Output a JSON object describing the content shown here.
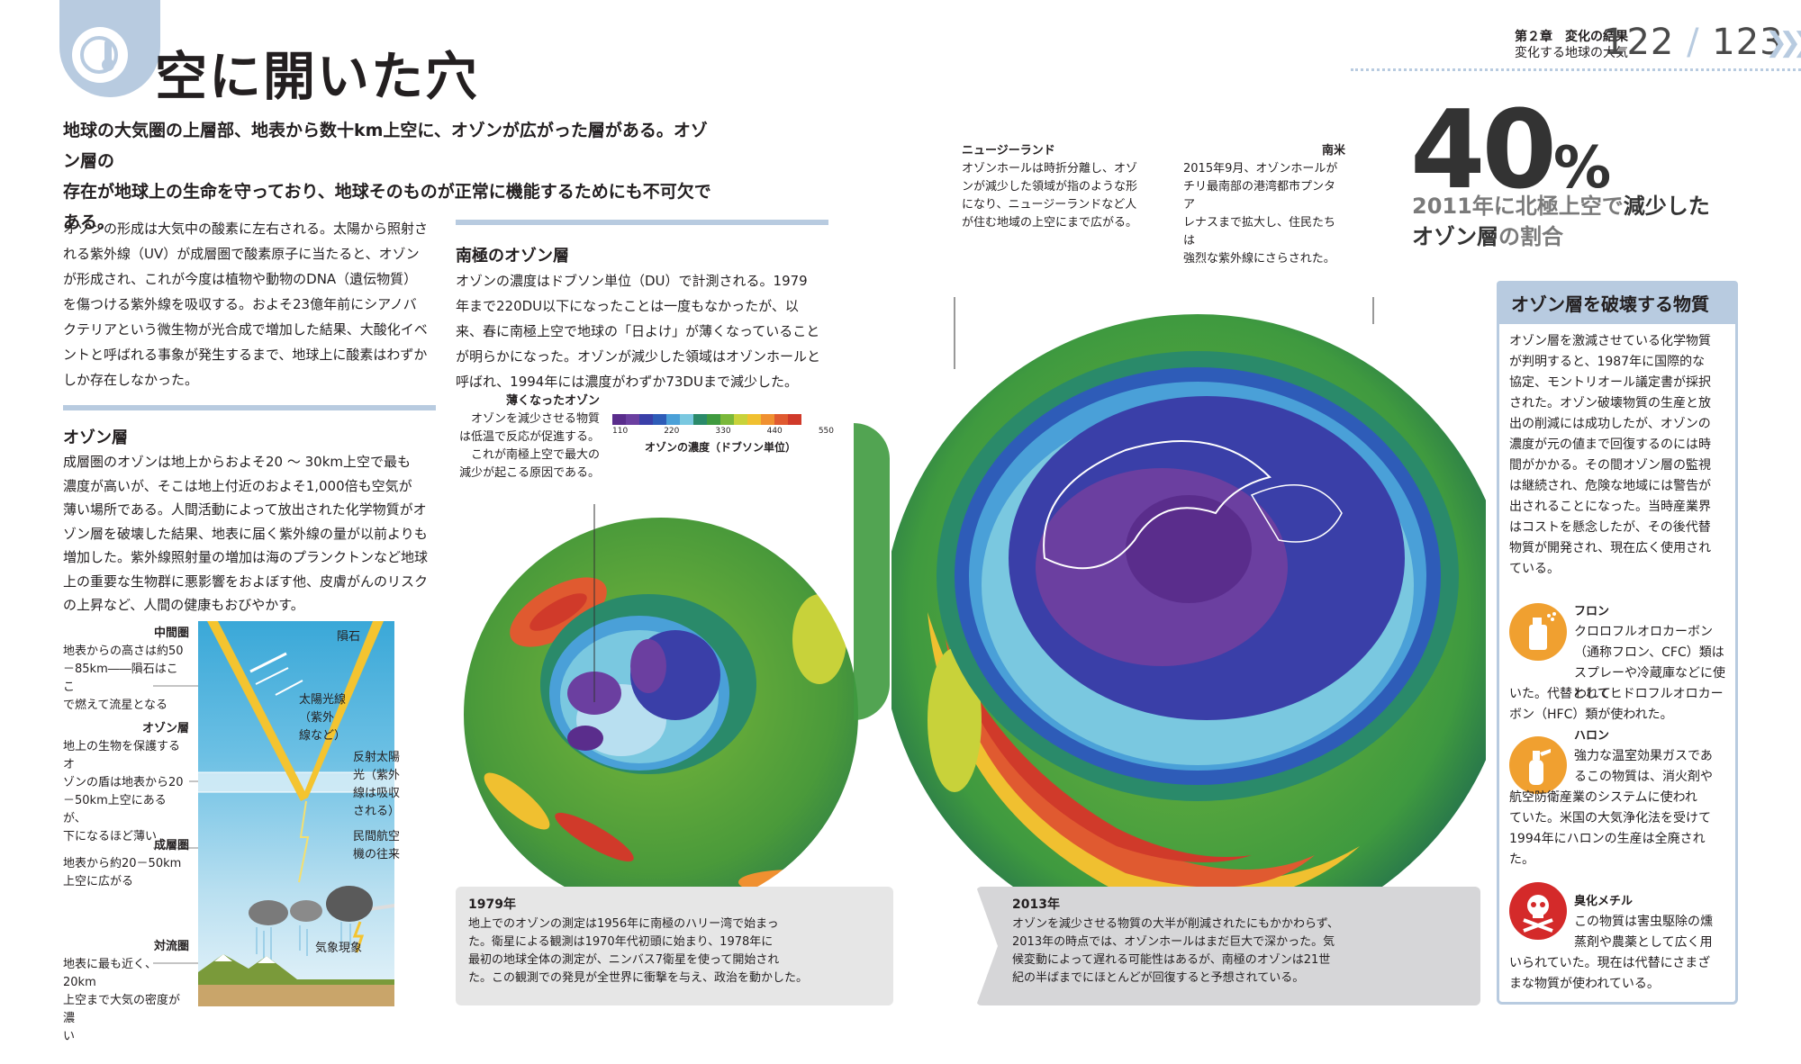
{
  "header": {
    "chapter": "第２章　変化の結果",
    "subtitle": "変化する地球の大気",
    "page_left": "122",
    "page_sep": "/",
    "page_right": "123"
  },
  "title": "空に開いた穴",
  "lead": [
    "地球の大気圏の上層部、地表から数十km上空に、オゾンが広がった層がある。オゾン層の",
    "存在が地球上の生命を守っており、地球そのものが正常に機能するためにも不可欠である。"
  ],
  "intro_paragraph": [
    "オゾンの形成は大気中の酸素に左右される。太陽から照射さ",
    "れる紫外線（UV）が成層圏で酸素原子に当たると、オゾン",
    "が形成され、これが今度は植物や動物のDNA（遺伝物質）",
    "を傷つける紫外線を吸収する。およそ23億年前にシアノバ",
    "クテリアという微生物が光合成で増加した結果、大酸化イベ",
    "ントと呼ばれる事象が発生するまで、地球上に酸素はわずか",
    "しか存在しなかった。"
  ],
  "ozone_layer": {
    "heading": "オゾン層",
    "lines": [
      "成層圏のオゾンは地上からおよそ20 ～ 30km上空で最も",
      "濃度が高いが、そこは地上付近のおよそ1,000倍も空気が",
      "薄い場所である。人間活動によって放出された化学物質がオ",
      "ゾン層を破壊した結果、地表に届く紫外線の量が以前よりも",
      "増加した。紫外線照射量の増加は海のプランクトンなど地球",
      "上の重要な生物群に悪影響をおよぼす他、皮膚がんのリスク",
      "の上昇など、人間の健康もおびやかす。"
    ]
  },
  "atmosphere_diagram": {
    "mesosphere": {
      "title": "中間圏",
      "lines": [
        "地表からの高さは約50",
        "－85km――隕石はここ",
        "で燃えて流星となる"
      ]
    },
    "ozone": {
      "title": "オゾン層",
      "lines": [
        "地上の生物を保護するオ",
        "ゾンの盾は地表から20",
        "－50km上空にあるが、",
        "下になるほど薄い"
      ]
    },
    "stratosphere": {
      "title": "成層圏",
      "lines": [
        "地表から約20－50km",
        "上空に広がる"
      ]
    },
    "troposphere": {
      "title": "対流圏",
      "lines": [
        "地表に最も近く、20km",
        "上空まで大気の密度が濃",
        "い"
      ]
    },
    "labels": {
      "meteor": "隕石",
      "sunlight": [
        "太陽光線",
        "（紫外",
        "線など）"
      ],
      "reflected": [
        "反射太陽",
        "光（紫外",
        "線は吸収",
        "される）"
      ],
      "aviation": [
        "民間航空",
        "機の往来"
      ],
      "weather": "気象現象"
    }
  },
  "antarctic": {
    "heading": "南極のオゾン層",
    "lines": [
      "オゾンの濃度はドブソン単位（DU）で計測される。1979",
      "年まで220DU以下になったことは一度もなかったが、以",
      "来、春に南極上空で地球の「日よけ」が薄くなっていること",
      "が明らかになった。オゾンが減少した領域はオゾンホールと",
      "呼ばれ、1994年には濃度がわずか73DUまで減少した。"
    ]
  },
  "thinning": {
    "title": "薄くなったオゾン",
    "lines": [
      "オゾンを減少させる物質",
      "は低温で反応が促進する。",
      "これが南極上空で最大の",
      "減少が起こる原因である。"
    ]
  },
  "legend": {
    "ticks": [
      "110",
      "220",
      "330",
      "440",
      "550"
    ],
    "label": "オゾンの濃度（ドブソン単位）",
    "colors": [
      "#5a2d8c",
      "#6b3fa0",
      "#3a3fa8",
      "#2e5cb8",
      "#4aa0d8",
      "#7ac8e0",
      "#2a8a6a",
      "#3f9a3f",
      "#7ab83a",
      "#c8d23a",
      "#f0c030",
      "#f09030",
      "#e05a30",
      "#d03a2a"
    ]
  },
  "new_zealand": {
    "title": "ニュージーランド",
    "lines": [
      "オゾンホールは時折分離し、オゾ",
      "ンが減少した領域が指のような形",
      "になり、ニュージーランドなど人",
      "が住む地域の上空にまで広がる。"
    ]
  },
  "south_america": {
    "title": "南米",
    "lines": [
      "2015年9月、オゾンホールが",
      "チリ最南部の港湾都市プンタア",
      "レナスまで拡大し、住民たちは",
      "強烈な紫外線にさらされた。"
    ]
  },
  "caption_1979": {
    "year": "1979年",
    "lines": [
      "地上でのオゾンの測定は1956年に南極のハリー湾で始まっ",
      "た。衛星による観測は1970年代初頭に始まり、1978年に",
      "最初の地球全体の測定が、ニンバス7衛星を使って開始され",
      "た。この観測での発見が全世界に衝撃を与え、政治を動かした。"
    ]
  },
  "caption_2013": {
    "year": "2013年",
    "lines": [
      "オゾンを減少させる物質の大半が削減されたにもかかわらず、",
      "2013年の時点では、オゾンホールはまだ巨大で深かった。気",
      "候変動によって遅れる可能性はあるが、南極のオゾンは21世",
      "紀の半ばまでにほとんどが回復すると予想されている。"
    ]
  },
  "stat": {
    "number": "40",
    "unit": "%",
    "line1_a": "2011年に北極上空で",
    "line1_b": "減少した",
    "line2_a": "オゾン層",
    "line2_b": "の割合"
  },
  "sidebar": {
    "title": "オゾン層を破壊する物質",
    "intro": [
      "オゾン層を激減させている化学物質",
      "が判明すると、1987年に国際的な",
      "協定、モントリオール議定書が採択",
      "された。オゾン破壊物質の生産と放",
      "出の削減には成功したが、オゾンの",
      "濃度が元の値まで回復するのには時",
      "間がかかる。その間オゾン層の監視",
      "は継続され、危険な地域には警告が",
      "出されることになった。当時産業界",
      "はコストを懸念したが、その後代替",
      "物質が開発され、現在広く使用され",
      "ている。"
    ],
    "freon": {
      "name": "フロン",
      "lines_short": [
        "クロロフルオロカーボン",
        "（通称フロン、CFC）類は",
        "スプレーや冷蔵庫などに使われて"
      ],
      "lines_full": [
        "いた。代替としてヒドロフルオロカー",
        "ボン（HFC）類が使われた。"
      ]
    },
    "halon": {
      "name": "ハロン",
      "lines_short": [
        "強力な温室効果ガスであ",
        "るこの物質は、消火剤や"
      ],
      "lines_full": [
        "航空防衛産業のシステムに使われ",
        "ていた。米国の大気浄化法を受けて",
        "1994年にハロンの生産は全廃され",
        "た。"
      ]
    },
    "methyl_bromide": {
      "name": "臭化メチル",
      "lines_short": [
        "この物質は害虫駆除の燻",
        "蒸剤や農薬として広く用"
      ],
      "lines_full": [
        "いられていた。現在は代替にさまざ",
        "まな物質が使われている。"
      ]
    },
    "icons": [
      "spray-can-icon",
      "fire-extinguisher-icon",
      "skull-crossbones-icon"
    ],
    "icon_color": "#f0a030",
    "skull_color": "#d42a2a"
  }
}
